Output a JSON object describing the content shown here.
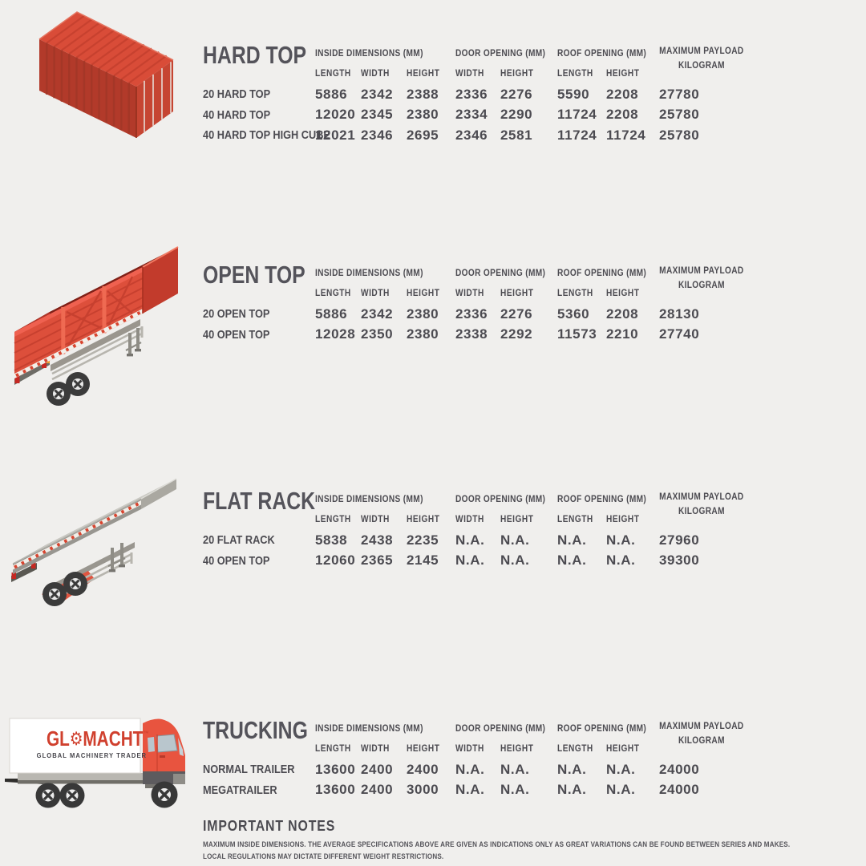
{
  "page": {
    "background": "#f0efed",
    "text_color": "#4c4b51",
    "accent_red": "#d0402e"
  },
  "columns": {
    "groups": [
      {
        "label": "INSIDE DIMENSIONS (MM)",
        "sub": [
          "LENGTH",
          "WIDTH",
          "HEIGHT"
        ]
      },
      {
        "label": "DOOR OPENING (MM)",
        "sub": [
          "WIDTH",
          "HEIGHT"
        ]
      },
      {
        "label": "ROOF OPENING (MM)",
        "sub": [
          "LENGTH",
          "HEIGHT"
        ]
      },
      {
        "label": "MAXIMUM PAYLOAD",
        "label2": "KILOGRAM"
      }
    ]
  },
  "sections": [
    {
      "title": "HARD TOP",
      "illustration": "red-shipping-container",
      "rows": [
        {
          "label": "20 HARD TOP",
          "values": [
            "5886",
            "2342",
            "2388",
            "2336",
            "2276",
            "5590",
            "2208",
            "27780"
          ]
        },
        {
          "label": "40 HARD TOP",
          "values": [
            "12020",
            "2345",
            "2380",
            "2334",
            "2290",
            "11724",
            "2208",
            "25780"
          ]
        },
        {
          "label": "40 HARD TOP HIGH CUBE",
          "values": [
            "12021",
            "2346",
            "2695",
            "2346",
            "2581",
            "11724",
            "11724",
            "25780"
          ]
        }
      ]
    },
    {
      "title": "OPEN TOP",
      "illustration": "red-open-top-trailer",
      "rows": [
        {
          "label": "20 OPEN TOP",
          "values": [
            "5886",
            "2342",
            "2380",
            "2336",
            "2276",
            "5360",
            "2208",
            "28130"
          ]
        },
        {
          "label": "40 OPEN TOP",
          "values": [
            "12028",
            "2350",
            "2380",
            "2338",
            "2292",
            "11573",
            "2210",
            "27740"
          ]
        }
      ]
    },
    {
      "title": "FLAT RACK",
      "illustration": "flat-rack-trailer",
      "rows": [
        {
          "label": "20 FLAT RACK",
          "values": [
            "5838",
            "2438",
            "2235",
            "N.A.",
            "N.A.",
            "N.A.",
            "N.A.",
            "27960"
          ]
        },
        {
          "label": "40 OPEN TOP",
          "values": [
            "12060",
            "2365",
            "2145",
            "N.A.",
            "N.A.",
            "N.A.",
            "N.A.",
            "39300"
          ]
        }
      ]
    },
    {
      "title": "TRUCKING",
      "illustration": "glomacht-box-truck",
      "rows": [
        {
          "label": "NORMAL TRAILER",
          "values": [
            "13600",
            "2400",
            "2400",
            "N.A.",
            "N.A.",
            "N.A.",
            "N.A.",
            "24000"
          ]
        },
        {
          "label": "MEGATRAILER",
          "values": [
            "13600",
            "2400",
            "3000",
            "N.A.",
            "N.A.",
            "N.A.",
            "N.A.",
            "24000"
          ]
        }
      ]
    }
  ],
  "truck_logo": {
    "brand_prefix": "GL",
    "gear": "⚙",
    "brand_suffix": "MACHT",
    "trademark": "™",
    "tagline": "GLOBAL MACHINERY TRADER"
  },
  "notes": {
    "title": "IMPORTANT NOTES",
    "lines": [
      "MAXIMUM INSIDE DIMENSIONS. THE AVERAGE SPECIFICATIONS ABOVE ARE GIVEN AS INDICATIONS ONLY AS GREAT VARIATIONS CAN BE FOUND BETWEEN SERIES AND MAKES.",
      "LOCAL REGULATIONS MAY DICTATE DIFFERENT WEIGHT RESTRICTIONS."
    ]
  }
}
